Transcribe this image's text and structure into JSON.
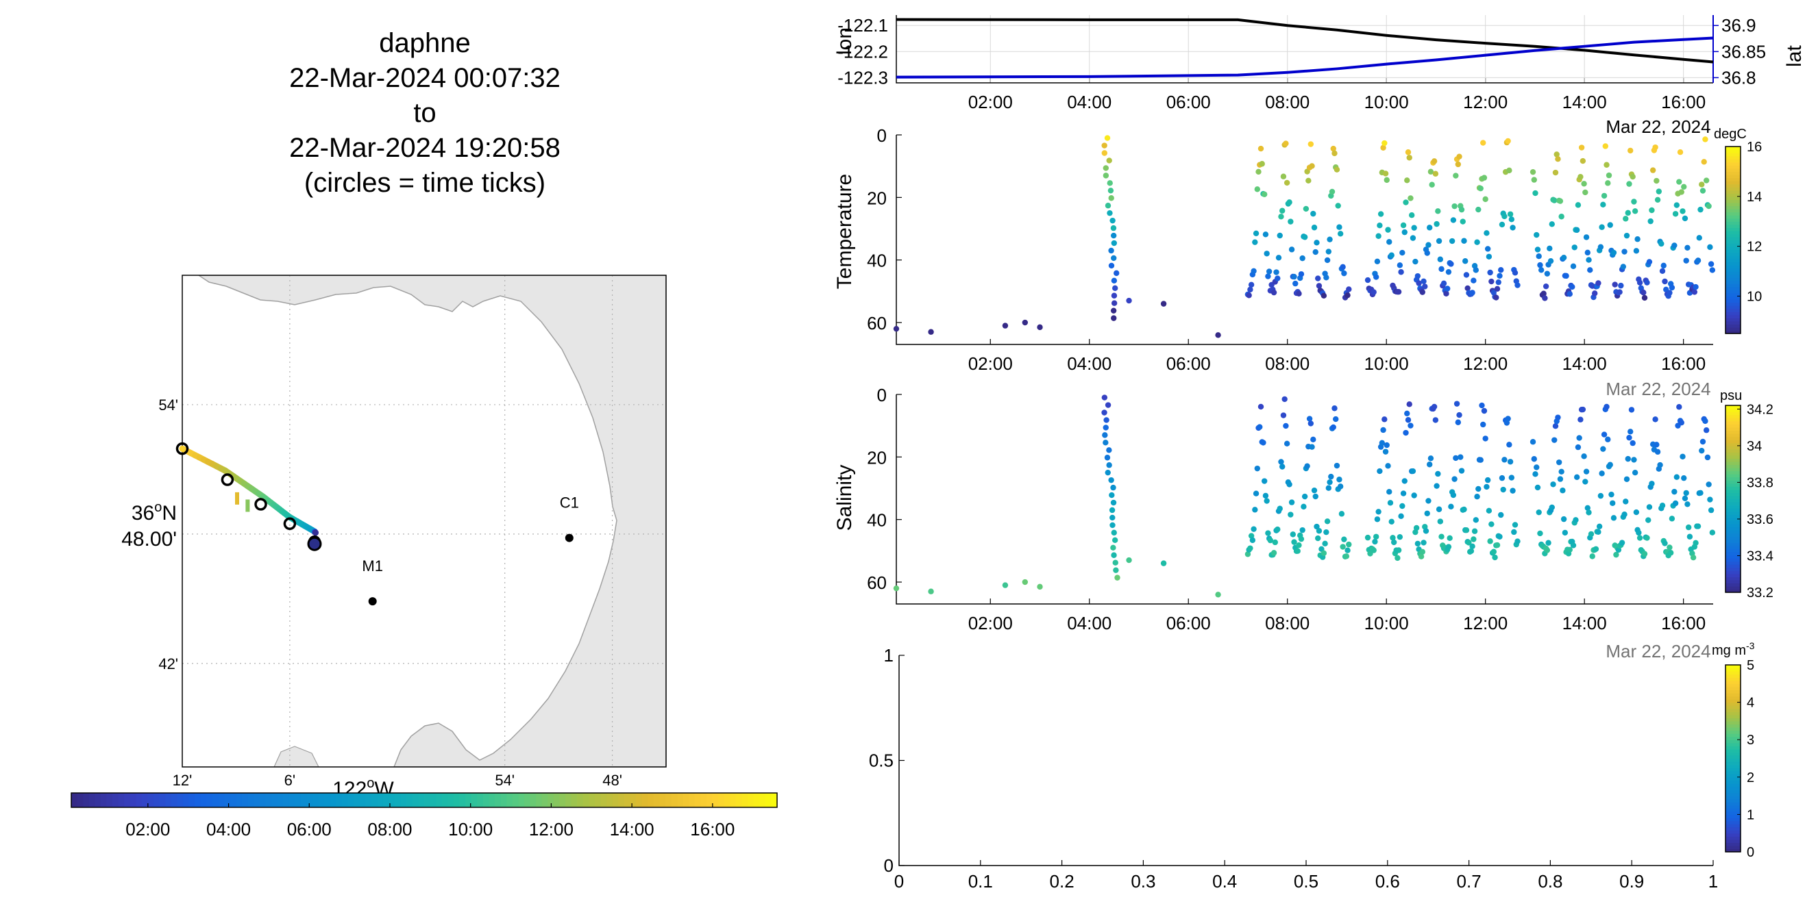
{
  "title": {
    "lines": [
      "daphne",
      "22-Mar-2024 00:07:32",
      "to",
      "22-Mar-2024 19:20:58",
      "(circles = time ticks)"
    ]
  },
  "colors": {
    "lon": "#000000",
    "lat": "#0000cc",
    "land": "#e6e6e6",
    "coast": "#a0a0a0"
  },
  "chart_data": [
    {
      "type": "line",
      "name": "track-map",
      "xlabel_text": "122",
      "xlabel_sup": "o",
      "xlabel_suffix": "W",
      "ylabel_line1": "36",
      "ylabel_sup": "o",
      "ylabel_suffix": "N",
      "ylabel_line2": "48.00'",
      "x_ticks": [
        {
          "label": "12'",
          "lon": -122.2
        },
        {
          "label": "6'",
          "lon": -122.1
        },
        {
          "label": "54'",
          "lon": -121.9
        },
        {
          "label": "48'",
          "lon": -121.8
        }
      ],
      "y_ticks": [
        {
          "label": "54'",
          "lat": 36.9
        },
        {
          "label": "42'",
          "lat": 36.7
        }
      ],
      "xlim": [
        -122.2,
        -121.75
      ],
      "ylim": [
        36.62,
        37.0
      ],
      "stations": [
        {
          "label": "C1",
          "lon": -121.84,
          "lat": 36.797
        },
        {
          "label": "M1",
          "lon": -122.023,
          "lat": 36.748
        }
      ],
      "track": [
        {
          "lon": -122.2,
          "lat": 36.866,
          "hour": 16.3
        },
        {
          "lon": -122.16,
          "lat": 36.849,
          "hour": 13.5
        },
        {
          "lon": -122.125,
          "lat": 36.829,
          "hour": 11.5
        },
        {
          "lon": -122.1,
          "lat": 36.813,
          "hour": 9.5
        },
        {
          "lon": -122.077,
          "lat": 36.802,
          "hour": 7.0
        },
        {
          "lon": -122.076,
          "lat": 36.801,
          "hour": 0.1
        }
      ],
      "time_ticks": [
        {
          "lon": -122.2,
          "lat": 36.866
        },
        {
          "lon": -122.158,
          "lat": 36.842
        },
        {
          "lon": -122.127,
          "lat": 36.823
        },
        {
          "lon": -122.1,
          "lat": 36.808
        },
        {
          "lon": -122.077,
          "lat": 36.794
        }
      ]
    },
    {
      "type": "bar",
      "name": "time-colorbar",
      "categories": [
        "02:00",
        "04:00",
        "06:00",
        "08:00",
        "10:00",
        "12:00",
        "14:00",
        "16:00"
      ],
      "tick_hours": [
        2,
        4,
        6,
        8,
        10,
        12,
        14,
        16
      ],
      "range_hours": [
        0.1,
        17.6
      ]
    },
    {
      "type": "line",
      "name": "lon-lat",
      "ylabel_left": "lon",
      "ylabel_right": "lat",
      "yticks_left": [
        "-122.1",
        "-122.2",
        "-122.3"
      ],
      "yticks_left_values": [
        -122.1,
        -122.2,
        -122.3
      ],
      "yticks_right": [
        "36.9",
        "36.85",
        "36.8"
      ],
      "yticks_right_values": [
        36.9,
        36.85,
        36.8
      ],
      "ylim_left": [
        -122.32,
        -122.06
      ],
      "ylim_right": [
        36.79,
        36.92
      ],
      "x_ticks": [
        "02:00",
        "04:00",
        "06:00",
        "08:00",
        "10:00",
        "12:00",
        "14:00",
        "16:00"
      ],
      "x_tick_hours": [
        2,
        4,
        6,
        8,
        10,
        12,
        14,
        16
      ],
      "xlim_hours": [
        0.1,
        16.6
      ],
      "date_label": "Mar 22, 2024",
      "series": [
        {
          "name": "lon",
          "points": [
            [
              0.1,
              -122.077
            ],
            [
              4.0,
              -122.078
            ],
            [
              7.0,
              -122.078
            ],
            [
              8.0,
              -122.1
            ],
            [
              9.0,
              -122.117
            ],
            [
              10.0,
              -122.138
            ],
            [
              11.0,
              -122.155
            ],
            [
              12.0,
              -122.168
            ],
            [
              13.0,
              -122.18
            ],
            [
              14.0,
              -122.195
            ],
            [
              15.0,
              -122.213
            ],
            [
              16.0,
              -122.23
            ],
            [
              16.6,
              -122.24
            ]
          ]
        },
        {
          "name": "lat",
          "points": [
            [
              0.1,
              36.801
            ],
            [
              4.0,
              36.802
            ],
            [
              7.0,
              36.805
            ],
            [
              8.0,
              36.81
            ],
            [
              9.0,
              36.817
            ],
            [
              10.0,
              36.826
            ],
            [
              11.0,
              36.834
            ],
            [
              12.0,
              36.843
            ],
            [
              13.0,
              36.852
            ],
            [
              14.0,
              36.86
            ],
            [
              15.0,
              36.868
            ],
            [
              16.0,
              36.873
            ],
            [
              16.6,
              36.876
            ]
          ]
        }
      ]
    },
    {
      "type": "scatter",
      "name": "temperature",
      "ylabel": "Temperature",
      "units": "degC",
      "y_ticks": [
        "0",
        "20",
        "40",
        "60"
      ],
      "y_tick_values": [
        0,
        20,
        40,
        60
      ],
      "ylim": [
        0,
        67
      ],
      "x_ticks": [
        "02:00",
        "04:00",
        "06:00",
        "08:00",
        "10:00",
        "12:00",
        "14:00",
        "16:00"
      ],
      "x_tick_hours": [
        2,
        4,
        6,
        8,
        10,
        12,
        14,
        16
      ],
      "xlim_hours": [
        0.1,
        16.6
      ],
      "date_label": "Mar 22, 2024",
      "colorbar_ticks": [
        "10",
        "12",
        "14",
        "16"
      ],
      "colorbar_tick_values": [
        10,
        12,
        14,
        16
      ],
      "clim": [
        8.5,
        16.0
      ],
      "points_note_ignore": ""
    },
    {
      "type": "scatter",
      "name": "salinity",
      "ylabel": "Salinity",
      "units": "psu",
      "y_ticks": [
        "0",
        "20",
        "40",
        "60"
      ],
      "y_tick_values": [
        0,
        20,
        40,
        60
      ],
      "ylim": [
        0,
        67
      ],
      "x_ticks": [
        "02:00",
        "04:00",
        "06:00",
        "08:00",
        "10:00",
        "12:00",
        "14:00",
        "16:00"
      ],
      "x_tick_hours": [
        2,
        4,
        6,
        8,
        10,
        12,
        14,
        16
      ],
      "xlim_hours": [
        0.1,
        16.6
      ],
      "date_label": "Mar 22, 2024",
      "colorbar_ticks": [
        "33.2",
        "33.4",
        "33.6",
        "33.8",
        "34",
        "34.2"
      ],
      "colorbar_tick_values": [
        33.2,
        33.4,
        33.6,
        33.8,
        34.0,
        34.2
      ],
      "clim": [
        33.2,
        34.22
      ]
    },
    {
      "type": "scatter",
      "name": "chlorophyll-empty",
      "units_base": "mg m",
      "units_sup": "-3",
      "x_ticks": [
        "0",
        "0.1",
        "0.2",
        "0.3",
        "0.4",
        "0.5",
        "0.6",
        "0.7",
        "0.8",
        "0.9",
        "1"
      ],
      "x_tick_values": [
        0,
        0.1,
        0.2,
        0.3,
        0.4,
        0.5,
        0.6,
        0.7,
        0.8,
        0.9,
        1
      ],
      "y_ticks": [
        "0",
        "0.5",
        "1"
      ],
      "y_tick_values": [
        0,
        0.5,
        1
      ],
      "xlim": [
        0,
        1
      ],
      "ylim": [
        0,
        1
      ],
      "colorbar_ticks": [
        "0",
        "1",
        "2",
        "3",
        "4",
        "5"
      ],
      "colorbar_tick_values": [
        0,
        1,
        2,
        3,
        4,
        5
      ],
      "clim": [
        0,
        5
      ]
    }
  ]
}
